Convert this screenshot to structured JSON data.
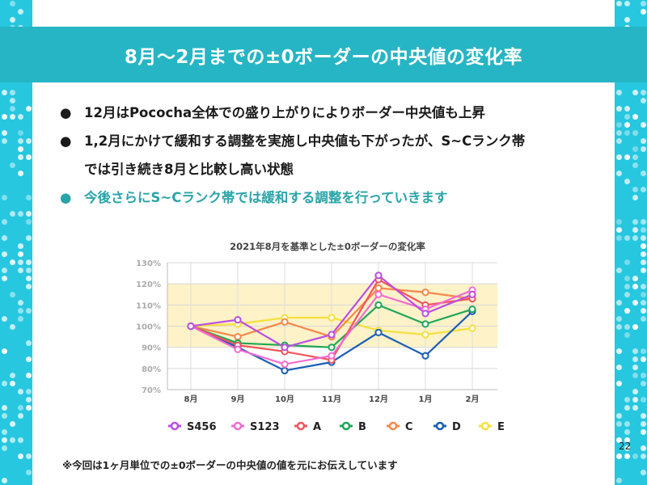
{
  "slide": {
    "title": "8月〜2月までの±0ボーダーの中央値の変化率",
    "page_number": "22",
    "footnote": "※今回は1ヶ月単位での±0ボーダーの中央値の値を元にお伝えしています",
    "bullets": [
      {
        "mark": "●",
        "text": "12月はPococha全体での盛り上がりによりボーダー中央値も上昇"
      },
      {
        "mark": "●",
        "text": "1,2月にかけて緩和する調整を実施し中央値も下がったが、S~Cランク帯",
        "text2": "では引き続き8月と比較し高い状態"
      },
      {
        "mark": "●",
        "text": "今後さらにS~Cランク帯では緩和する調整を行っていきます"
      }
    ],
    "colors": {
      "title_bar": "#26b5c4",
      "side": "#27c7e0",
      "accent_text": "#2aa4a8",
      "band": "#fdf2c8"
    }
  },
  "chart_data": {
    "type": "line",
    "title": "2021年8月を基準とした±0ボーダーの変化率",
    "categories": [
      "8月",
      "9月",
      "10月",
      "11月",
      "12月",
      "1月",
      "2月"
    ],
    "yticks": [
      "70%",
      "80%",
      "90%",
      "100%",
      "110%",
      "120%",
      "130%"
    ],
    "ylim": [
      70,
      130
    ],
    "highlight_band": [
      90,
      120
    ],
    "grid": true,
    "legend_position": "bottom",
    "series": [
      {
        "name": "S456",
        "color": "#b94fe0",
        "values": [
          100,
          103,
          90,
          96,
          124,
          106,
          115
        ]
      },
      {
        "name": "S123",
        "color": "#f26bd3",
        "values": [
          100,
          89,
          82,
          86,
          115,
          108,
          117
        ]
      },
      {
        "name": "A",
        "color": "#f2545b",
        "values": [
          100,
          91,
          88,
          84,
          122,
          110,
          113
        ]
      },
      {
        "name": "B",
        "color": "#1fa65a",
        "values": [
          100,
          92,
          91,
          90,
          110,
          101,
          108
        ]
      },
      {
        "name": "C",
        "color": "#f5884a",
        "values": [
          100,
          95,
          102,
          95,
          118,
          116,
          113
        ]
      },
      {
        "name": "D",
        "color": "#1a5db5",
        "values": [
          100,
          90,
          79,
          83,
          97,
          86,
          107
        ]
      },
      {
        "name": "E",
        "color": "#f5e03c",
        "values": [
          100,
          101,
          104,
          104,
          98,
          96,
          99
        ]
      }
    ]
  }
}
